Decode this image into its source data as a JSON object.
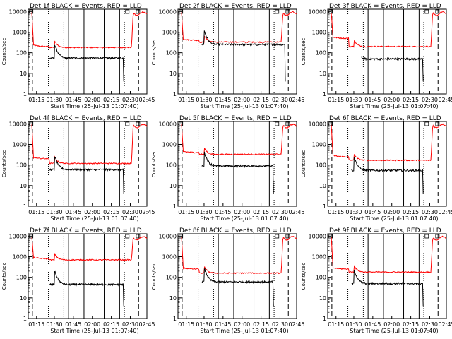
{
  "chart_data": [
    {
      "type": "line",
      "title": "Det 1f BLACK = Events, RED = LLD",
      "xlabel": "Start Time (25-Jul-13 01:07:40)",
      "ylabel": "Counts/sec",
      "red_level": 180,
      "black_level": 55,
      "black_start": 0.18,
      "black_end": 0.8,
      "red_pre": 200
    },
    {
      "type": "line",
      "title": "Det 2f BLACK = Events, RED = LLD",
      "xlabel": "Start Time (25-Jul-13 01:07:40)",
      "ylabel": "Counts/sec",
      "red_level": 330,
      "black_level": 250,
      "black_start": 0.2,
      "black_end": 0.9,
      "red_pre": 400
    },
    {
      "type": "line",
      "title": "Det 3f BLACK = Events, RED = LLD",
      "xlabel": "Start Time (25-Jul-13 01:07:40)",
      "ylabel": "Counts/sec",
      "red_level": 200,
      "black_level": 50,
      "black_start": 0.28,
      "black_end": 0.8,
      "red_pre": 500
    },
    {
      "type": "line",
      "title": "Det 4f BLACK = Events, RED = LLD",
      "xlabel": "Start Time (25-Jul-13 01:07:40)",
      "ylabel": "Counts/sec",
      "red_level": 120,
      "black_level": 60,
      "black_start": 0.18,
      "black_end": 0.8,
      "red_pre": 200
    },
    {
      "type": "line",
      "title": "Det 5f BLACK = Events, RED = LLD",
      "xlabel": "Start Time (25-Jul-13 01:07:40)",
      "ylabel": "Counts/sec",
      "red_level": 330,
      "black_level": 90,
      "black_start": 0.2,
      "black_end": 0.8,
      "red_pre": 400
    },
    {
      "type": "line",
      "title": "Det 6f BLACK = Events, RED = LLD",
      "xlabel": "Start Time (25-Jul-13 01:07:40)",
      "ylabel": "Counts/sec",
      "red_level": 170,
      "black_level": 55,
      "black_start": 0.2,
      "black_end": 0.8,
      "red_pre": 250
    },
    {
      "type": "line",
      "title": "Det 7f BLACK = Events, RED = LLD",
      "xlabel": "Start Time (25-Jul-13 01:07:40)",
      "ylabel": "Counts/sec",
      "red_level": 700,
      "black_level": 45,
      "black_start": 0.18,
      "black_end": 0.8,
      "red_pre": 800
    },
    {
      "type": "line",
      "title": "Det 8f BLACK = Events, RED = LLD",
      "xlabel": "Start Time (25-Jul-13 01:07:40)",
      "ylabel": "Counts/sec",
      "red_level": 160,
      "black_level": 60,
      "black_start": 0.2,
      "black_end": 0.8,
      "red_pre": 250
    },
    {
      "type": "line",
      "title": "Det 9f BLACK = Events, RED = LLD",
      "xlabel": "Start Time (25-Jul-13 01:07:40)",
      "ylabel": "Counts/sec",
      "red_level": 180,
      "black_level": 50,
      "black_start": 0.2,
      "black_end": 0.8,
      "red_pre": 250
    }
  ],
  "x_ticks": [
    "01:15",
    "01:30",
    "01:45",
    "02:00",
    "02:15",
    "02:30",
    "02:45"
  ],
  "y_ticks": [
    "1",
    "10",
    "100",
    "1000",
    "10000"
  ],
  "ylim": [
    1,
    13000
  ],
  "colors": {
    "events": "#000000",
    "lld": "#ff0000"
  }
}
